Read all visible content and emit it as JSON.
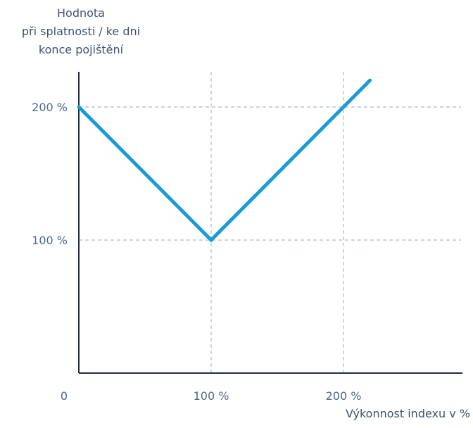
{
  "chart_data": {
    "type": "line",
    "title": "",
    "ylabel_lines": [
      "Hodnota",
      "při splatnosti / ke dni",
      "konce pojištění"
    ],
    "xlabel": "Výkonnost indexu v %",
    "x_origin_label": "0",
    "x_ticks": [
      {
        "value": 100,
        "label": "100 %"
      },
      {
        "value": 200,
        "label": "200 %"
      }
    ],
    "y_ticks": [
      {
        "value": 100,
        "label": "100 %"
      },
      {
        "value": 200,
        "label": "200 %"
      }
    ],
    "xlim": [
      0,
      300
    ],
    "ylim": [
      0,
      250
    ],
    "grid": "dashed at tick values",
    "series": [
      {
        "color": "#1a9ad6",
        "x": [
          0,
          100,
          220
        ],
        "y": [
          200,
          100,
          220
        ]
      }
    ],
    "axis_color": "#1f2f44",
    "grid_color": "#a9bcd0"
  }
}
